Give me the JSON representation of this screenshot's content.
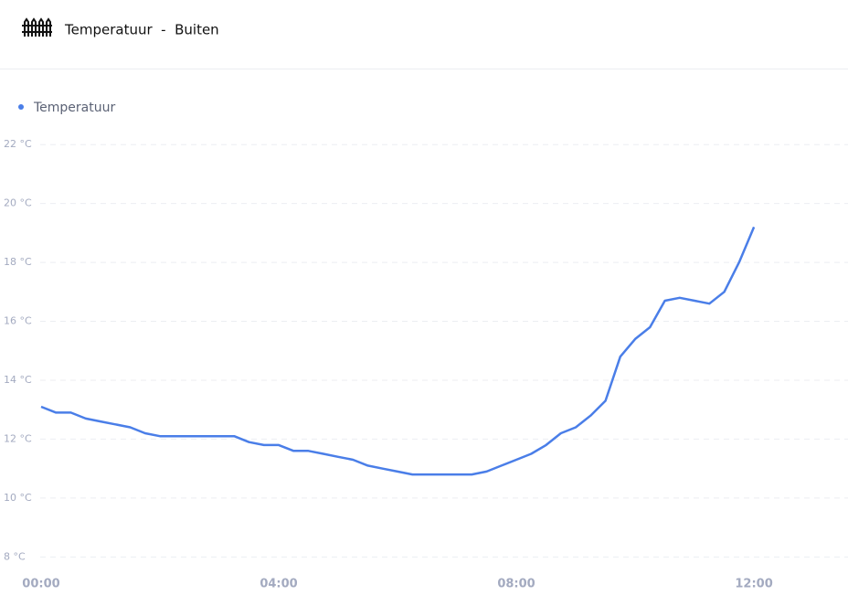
{
  "chart_data": {
    "type": "line",
    "title": "Temperatuur  -  Buiten",
    "x": [
      "00:00",
      "00:15",
      "00:30",
      "00:45",
      "01:00",
      "01:15",
      "01:30",
      "01:45",
      "02:00",
      "02:15",
      "02:30",
      "02:45",
      "03:00",
      "03:15",
      "03:30",
      "03:45",
      "04:00",
      "04:15",
      "04:30",
      "04:45",
      "05:00",
      "05:15",
      "05:30",
      "05:45",
      "06:00",
      "06:15",
      "06:30",
      "06:45",
      "07:00",
      "07:15",
      "07:30",
      "07:45",
      "08:00",
      "08:15",
      "08:30",
      "08:45",
      "09:00",
      "09:15",
      "09:30",
      "09:45",
      "10:00",
      "10:15",
      "10:30",
      "10:45",
      "11:00",
      "11:15",
      "11:30",
      "11:45",
      "12:00"
    ],
    "series": [
      {
        "name": "Temperatuur",
        "color": "#4a7ee8",
        "values": [
          13.1,
          12.9,
          12.9,
          12.7,
          12.6,
          12.5,
          12.4,
          12.2,
          12.1,
          12.1,
          12.1,
          12.1,
          12.1,
          12.1,
          11.9,
          11.8,
          11.8,
          11.6,
          11.6,
          11.5,
          11.4,
          11.3,
          11.1,
          11.0,
          10.9,
          10.8,
          10.8,
          10.8,
          10.8,
          10.8,
          10.9,
          11.1,
          11.3,
          11.5,
          11.8,
          12.2,
          12.4,
          12.8,
          13.3,
          14.8,
          15.4,
          15.8,
          16.7,
          16.8,
          16.7,
          16.6,
          17.0,
          18.0,
          19.2
        ]
      }
    ],
    "xlim": [
      "00:00",
      "13:35"
    ],
    "xticks": [
      "00:00",
      "04:00",
      "08:00",
      "12:00"
    ],
    "ylim": [
      7.7,
      22.4
    ],
    "yticks": [
      {
        "value": 8,
        "label": "8 °C"
      },
      {
        "value": 10,
        "label": "10 °C"
      },
      {
        "value": 12,
        "label": "12 °C"
      },
      {
        "value": 14,
        "label": "14 °C"
      },
      {
        "value": 16,
        "label": "16 °C"
      },
      {
        "value": 18,
        "label": "18 °C"
      },
      {
        "value": 20,
        "label": "20 °C"
      },
      {
        "value": 22,
        "label": "22 °C"
      }
    ],
    "grid": true
  }
}
